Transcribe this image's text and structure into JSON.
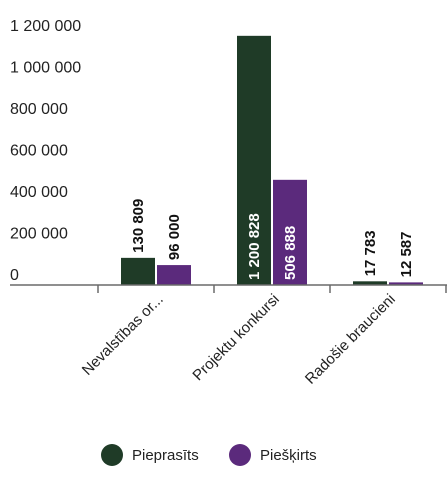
{
  "chart_data": {
    "type": "bar",
    "categories": [
      "Nevalstības or...",
      "Projektu konkursi",
      "Radošie braucieni"
    ],
    "series": [
      {
        "name": "Pieprasīts",
        "color": "#1f3b27",
        "values": [
          130809,
          1200828,
          17783
        ],
        "labels": [
          "130 809",
          "1 200 828",
          "17 783"
        ]
      },
      {
        "name": "Piešķirts",
        "color": "#5b2a7c",
        "values": [
          96000,
          506888,
          12587
        ],
        "labels": [
          "96 000",
          "506 888",
          "12 587"
        ]
      }
    ],
    "y_ticks": [
      0,
      200000,
      400000,
      600000,
      800000,
      1000000,
      1200000
    ],
    "y_tick_labels": [
      "0",
      "200 000",
      "400 000",
      "600 000",
      "800 000",
      "1 000 000",
      "1 200 000"
    ],
    "ylim": [
      0,
      1200000
    ],
    "grid": false,
    "legend_position": "bottom-center"
  }
}
